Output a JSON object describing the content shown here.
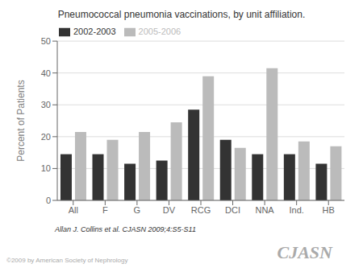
{
  "chart_data": {
    "type": "bar",
    "title": "Pneumococcal pneumonia vaccinations, by unit affiliation.",
    "y_label": "Percent of Patients",
    "categories": [
      "All",
      "F",
      "G",
      "DV",
      "RCG",
      "DCI",
      "NNA",
      "Ind.",
      "HB"
    ],
    "series": [
      {
        "name": "2002-2003",
        "color": "#333333",
        "values": [
          14.5,
          14.5,
          11.5,
          12.5,
          28.5,
          19.0,
          14.5,
          14.5,
          11.5
        ]
      },
      {
        "name": "2005-2006",
        "color": "#bbbbbb",
        "values": [
          21.5,
          19.0,
          21.5,
          24.5,
          39.0,
          16.5,
          41.5,
          18.5,
          17.0
        ]
      }
    ],
    "ylim": [
      0,
      50
    ],
    "yticks": [
      0,
      10,
      20,
      30,
      40,
      50
    ],
    "grid": true,
    "legend": "upper left",
    "annotations": [
      "Allan J. Collins et al. CJASN 2009;4:S5-S11",
      "©2009 by American Society of Nephrology",
      "CJASN"
    ]
  }
}
